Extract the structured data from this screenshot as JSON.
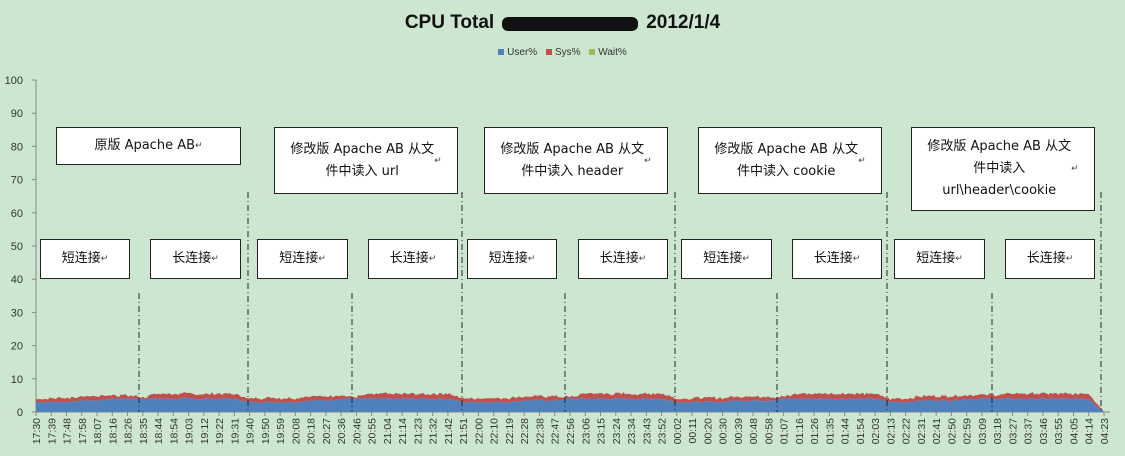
{
  "chart_data": {
    "type": "area",
    "title_prefix": "CPU Total",
    "title_suffix": "2012/1/4",
    "legend": [
      {
        "name": "User%",
        "color": "#4f81bd"
      },
      {
        "name": "Sys%",
        "color": "#c0504d"
      },
      {
        "name": "Wait%",
        "color": "#9bbb59"
      }
    ],
    "ylim": [
      0,
      100
    ],
    "yticks": [
      0,
      10,
      20,
      30,
      40,
      50,
      60,
      70,
      80,
      90,
      100
    ],
    "xticks": [
      "17:30",
      "17:39",
      "17:48",
      "17:58",
      "18:07",
      "18:16",
      "18:26",
      "18:35",
      "18:44",
      "18:54",
      "19:03",
      "19:12",
      "19:22",
      "19:31",
      "19:40",
      "19:50",
      "19:59",
      "20:08",
      "20:18",
      "20:27",
      "20:36",
      "20:46",
      "20:55",
      "21:04",
      "21:14",
      "21:23",
      "21:32",
      "21:42",
      "21:51",
      "22:00",
      "22:10",
      "22:19",
      "22:28",
      "22:38",
      "22:47",
      "22:56",
      "23:06",
      "23:15",
      "23:24",
      "23:34",
      "23:43",
      "23:52",
      "00:02",
      "00:11",
      "00:20",
      "00:30",
      "00:39",
      "00:48",
      "00:58",
      "01:07",
      "01:16",
      "01:26",
      "01:35",
      "01:44",
      "01:54",
      "02:03",
      "02:13",
      "02:22",
      "02:31",
      "02:41",
      "02:50",
      "02:59",
      "03:09",
      "03:18",
      "03:27",
      "03:37",
      "03:46",
      "03:55",
      "04:05",
      "04:14",
      "04:23"
    ],
    "series": [
      {
        "name": "User%",
        "values": [
          3,
          3,
          3,
          3.5,
          3.5,
          4,
          4,
          4,
          4,
          4,
          4,
          4,
          4,
          4,
          3,
          3,
          3,
          3,
          3.5,
          3.5,
          4,
          4,
          4,
          4,
          4,
          4,
          4,
          4,
          3,
          3,
          3,
          3,
          3.5,
          3.5,
          3.5,
          4,
          4,
          4,
          4,
          4,
          4,
          4,
          3,
          3,
          3,
          3,
          3.5,
          3.5,
          3.5,
          4,
          4,
          4,
          4,
          4,
          4,
          4,
          3,
          3,
          3.5,
          3.5,
          3.5,
          4,
          4,
          4,
          4,
          4,
          4,
          4,
          4,
          4,
          0
        ]
      },
      {
        "name": "Sys%",
        "values": [
          1,
          1.2,
          1.2,
          1.2,
          1.2,
          1,
          1,
          0.5,
          1.5,
          1.5,
          1.5,
          1.5,
          1.5,
          1.5,
          1,
          1.2,
          1.2,
          1.2,
          1.2,
          1.2,
          1,
          0.5,
          1.5,
          1.5,
          1.5,
          1.5,
          1.5,
          1.5,
          1,
          1.2,
          1.2,
          1.2,
          1.2,
          1.2,
          1.2,
          0.5,
          1.5,
          1.5,
          1.5,
          1.5,
          1.5,
          1.5,
          1,
          1.2,
          1.2,
          1.2,
          1.2,
          1.2,
          1.2,
          0.5,
          1.5,
          1.5,
          1.5,
          1.5,
          1.5,
          1.5,
          1,
          1.2,
          1.2,
          1.2,
          1.2,
          1.2,
          1.2,
          1.2,
          1.5,
          1.5,
          1.5,
          1.5,
          1.5,
          1.5,
          0
        ]
      },
      {
        "name": "Wait%",
        "values": [
          0,
          0,
          0,
          0,
          0,
          0,
          0,
          0,
          0,
          0,
          0,
          0,
          0,
          0,
          0,
          0,
          0,
          0,
          0,
          0,
          0,
          0,
          0,
          0,
          0,
          0,
          0,
          0,
          0,
          0,
          0,
          0,
          0,
          0,
          0,
          0,
          0,
          0,
          0,
          0,
          0,
          0,
          0,
          0,
          0,
          0,
          0,
          0,
          0,
          0,
          0,
          0,
          0,
          0,
          0,
          0,
          0,
          0,
          0,
          0,
          0,
          0,
          0,
          0,
          0,
          0,
          0,
          0,
          0,
          0,
          0
        ]
      }
    ],
    "grid": false,
    "legend_position": "top"
  },
  "annotations": {
    "phases": [
      {
        "label": "原版 Apache AB"
      },
      {
        "label": "修改版 Apache AB 从文\n件中读入 url"
      },
      {
        "label": "修改版 Apache AB  从文\n件中读入 header"
      },
      {
        "label": "修改版 Apache AB 从文\n件中读入 cookie"
      },
      {
        "label": "修改版 Apache AB 从文\n件中读入\nurl\\header\\cookie"
      }
    ],
    "short_conn": "短连接",
    "long_conn": "长连接",
    "return_mark": "↵"
  }
}
